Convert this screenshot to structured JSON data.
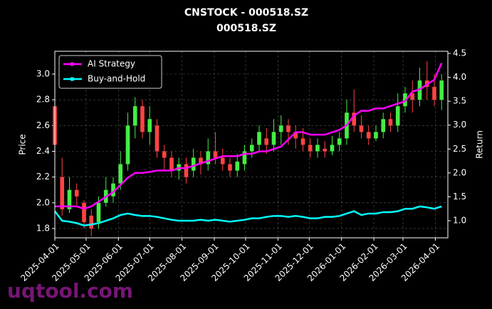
{
  "chart_data": {
    "type": "candlestick",
    "title": "CNSTOCK - 000518.SZ",
    "subtitle": "000518.SZ",
    "y_label": "Price",
    "y2_label": "Return",
    "watermark": "uqtool.com",
    "x": [
      "2025-04-01",
      "2025-04-08",
      "2025-04-15",
      "2025-04-22",
      "2025-04-29",
      "2025-05-06",
      "2025-05-13",
      "2025-05-20",
      "2025-05-27",
      "2025-06-03",
      "2025-06-10",
      "2025-06-17",
      "2025-06-24",
      "2025-07-01",
      "2025-07-08",
      "2025-07-15",
      "2025-07-22",
      "2025-07-29",
      "2025-08-05",
      "2025-08-12",
      "2025-08-19",
      "2025-08-26",
      "2025-09-02",
      "2025-09-09",
      "2025-09-16",
      "2025-09-23",
      "2025-09-30",
      "2025-10-07",
      "2025-10-14",
      "2025-10-21",
      "2025-10-28",
      "2025-11-04",
      "2025-11-11",
      "2025-11-18",
      "2025-11-25",
      "2025-12-02",
      "2025-12-09",
      "2025-12-16",
      "2025-12-23",
      "2025-12-30",
      "2026-01-06",
      "2026-01-13",
      "2026-01-20",
      "2026-01-27",
      "2026-02-03",
      "2026-02-10",
      "2026-02-17",
      "2026-02-24",
      "2026-03-03",
      "2026-03-10",
      "2026-03-17",
      "2026-03-24",
      "2026-03-31",
      "2026-04-07"
    ],
    "open": [
      2.75,
      2.2,
      1.95,
      2.1,
      2.0,
      1.9,
      1.85,
      2.0,
      2.05,
      2.15,
      2.3,
      2.6,
      2.75,
      2.55,
      2.6,
      2.4,
      2.35,
      2.25,
      2.3,
      2.25,
      2.35,
      2.3,
      2.4,
      2.35,
      2.3,
      2.25,
      2.3,
      2.4,
      2.45,
      2.5,
      2.45,
      2.55,
      2.6,
      2.55,
      2.5,
      2.45,
      2.4,
      2.42,
      2.4,
      2.45,
      2.5,
      2.7,
      2.6,
      2.55,
      2.5,
      2.55,
      2.65,
      2.6,
      2.75,
      2.85,
      2.8,
      2.95,
      2.9,
      2.8
    ],
    "high": [
      2.78,
      2.35,
      2.2,
      2.15,
      2.02,
      1.95,
      2.05,
      2.2,
      2.2,
      2.4,
      2.7,
      2.82,
      2.8,
      2.75,
      2.65,
      2.45,
      2.4,
      2.35,
      2.35,
      2.42,
      2.4,
      2.5,
      2.55,
      2.42,
      2.35,
      2.38,
      2.45,
      2.5,
      2.6,
      2.58,
      2.65,
      2.68,
      2.65,
      2.6,
      2.58,
      2.5,
      2.5,
      2.48,
      2.52,
      2.55,
      2.8,
      2.88,
      2.68,
      2.6,
      2.6,
      2.7,
      2.7,
      2.85,
      2.9,
      2.95,
      3.05,
      3.1,
      3.0,
      3.0
    ],
    "low": [
      2.4,
      1.9,
      1.92,
      1.98,
      1.8,
      1.74,
      1.8,
      1.97,
      2.0,
      2.1,
      2.25,
      2.5,
      2.5,
      2.45,
      2.35,
      2.25,
      2.2,
      2.18,
      2.15,
      2.2,
      2.22,
      2.25,
      2.3,
      2.25,
      2.2,
      2.2,
      2.25,
      2.35,
      2.4,
      2.38,
      2.4,
      2.45,
      2.45,
      2.42,
      2.4,
      2.35,
      2.35,
      2.35,
      2.37,
      2.4,
      2.45,
      2.55,
      2.5,
      2.45,
      2.48,
      2.5,
      2.55,
      2.55,
      2.7,
      2.7,
      2.75,
      2.8,
      2.75,
      2.72
    ],
    "close": [
      2.45,
      1.95,
      2.1,
      2.05,
      1.85,
      1.8,
      2.0,
      2.1,
      2.15,
      2.3,
      2.6,
      2.75,
      2.55,
      2.65,
      2.4,
      2.35,
      2.25,
      2.3,
      2.2,
      2.35,
      2.3,
      2.4,
      2.35,
      2.3,
      2.25,
      2.32,
      2.4,
      2.45,
      2.55,
      2.45,
      2.55,
      2.6,
      2.55,
      2.5,
      2.45,
      2.4,
      2.45,
      2.4,
      2.45,
      2.5,
      2.7,
      2.6,
      2.55,
      2.5,
      2.55,
      2.65,
      2.6,
      2.75,
      2.85,
      2.8,
      2.95,
      2.9,
      2.8,
      2.95
    ],
    "up_color": "#44ee44",
    "down_color": "#ff4444",
    "series": [
      {
        "name": "AI Strategy",
        "color": "#ff00ff",
        "axis": "y2",
        "values": [
          1.3,
          1.3,
          1.3,
          1.3,
          1.25,
          1.3,
          1.4,
          1.5,
          1.6,
          1.75,
          1.9,
          2.0,
          2.0,
          2.02,
          2.05,
          2.05,
          2.05,
          2.1,
          2.1,
          2.15,
          2.2,
          2.25,
          2.3,
          2.35,
          2.35,
          2.35,
          2.4,
          2.4,
          2.45,
          2.45,
          2.5,
          2.55,
          2.7,
          2.85,
          2.85,
          2.8,
          2.8,
          2.8,
          2.85,
          2.9,
          3.0,
          3.2,
          3.3,
          3.3,
          3.35,
          3.35,
          3.4,
          3.45,
          3.5,
          3.7,
          3.75,
          3.85,
          3.95,
          4.3
        ]
      },
      {
        "name": "Buy-and-Hold",
        "color": "#00ffff",
        "axis": "y2",
        "values": [
          1.2,
          1.0,
          0.98,
          0.95,
          0.9,
          0.92,
          0.95,
          1.0,
          1.05,
          1.12,
          1.15,
          1.12,
          1.1,
          1.1,
          1.08,
          1.05,
          1.02,
          1.0,
          1.0,
          1.0,
          1.02,
          1.0,
          1.02,
          1.0,
          0.98,
          1.0,
          1.02,
          1.05,
          1.05,
          1.08,
          1.1,
          1.1,
          1.08,
          1.1,
          1.08,
          1.05,
          1.05,
          1.08,
          1.08,
          1.1,
          1.15,
          1.2,
          1.12,
          1.15,
          1.15,
          1.18,
          1.18,
          1.2,
          1.25,
          1.25,
          1.3,
          1.28,
          1.25,
          1.3
        ]
      }
    ],
    "xlim": [
      "2025-04-01",
      "2026-04-13"
    ],
    "xticks": [
      "2025-04-01",
      "2025-05-01",
      "2025-06-01",
      "2025-07-01",
      "2025-08-01",
      "2025-09-01",
      "2025-10-01",
      "2025-11-01",
      "2025-12-01",
      "2026-01-01",
      "2026-02-01",
      "2026-03-01",
      "2026-04-01"
    ],
    "ylim": [
      1.728,
      3.177
    ],
    "yticks": [
      1.8,
      {
        "value": 2,
        "label": "2.0"
      },
      2.2,
      2.4,
      2.6,
      2.8,
      {
        "value": 3,
        "label": "3.0"
      }
    ],
    "y2lim": [
      0.643,
      4.545
    ],
    "y2ticks": [
      {
        "value": 1,
        "label": "1.0"
      },
      1.5,
      {
        "value": 2,
        "label": "2.0"
      },
      2.5,
      {
        "value": 3,
        "label": "3.0"
      },
      3.5,
      {
        "value": 4,
        "label": "4.0"
      },
      4.5
    ],
    "grid": true,
    "legend": "upper left"
  }
}
